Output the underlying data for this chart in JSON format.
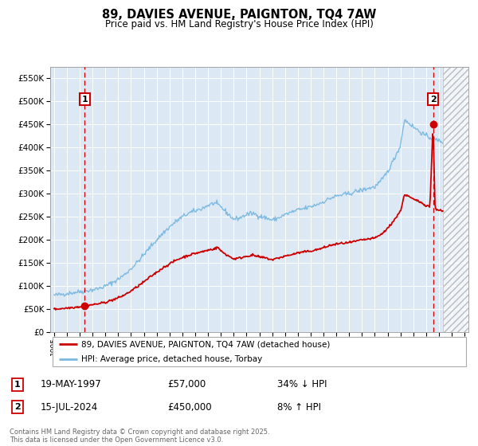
{
  "title": "89, DAVIES AVENUE, PAIGNTON, TQ4 7AW",
  "subtitle": "Price paid vs. HM Land Registry's House Price Index (HPI)",
  "background_color": "#ffffff",
  "plot_bg_color": "#dce9f5",
  "grid_color": "#ffffff",
  "hpi_line_color": "#7ab8e0",
  "price_line_color": "#cc0000",
  "transaction1": {
    "date": "19-MAY-1997",
    "price": 57000,
    "pct": "34% ↓ HPI",
    "label": "1",
    "year": 1997.38
  },
  "transaction2": {
    "date": "15-JUL-2024",
    "price": 450000,
    "pct": "8% ↑ HPI",
    "label": "2",
    "year": 2024.54
  },
  "legend_label1": "89, DAVIES AVENUE, PAIGNTON, TQ4 7AW (detached house)",
  "legend_label2": "HPI: Average price, detached house, Torbay",
  "footer": "Contains HM Land Registry data © Crown copyright and database right 2025.\nThis data is licensed under the Open Government Licence v3.0.",
  "ylim": [
    0,
    575000
  ],
  "xlim_start": 1994.7,
  "xlim_end": 2027.3,
  "hatch_color": "#bbbbbb",
  "dashed_line_color": "#cc0000",
  "future_shade_start": 2025.3
}
